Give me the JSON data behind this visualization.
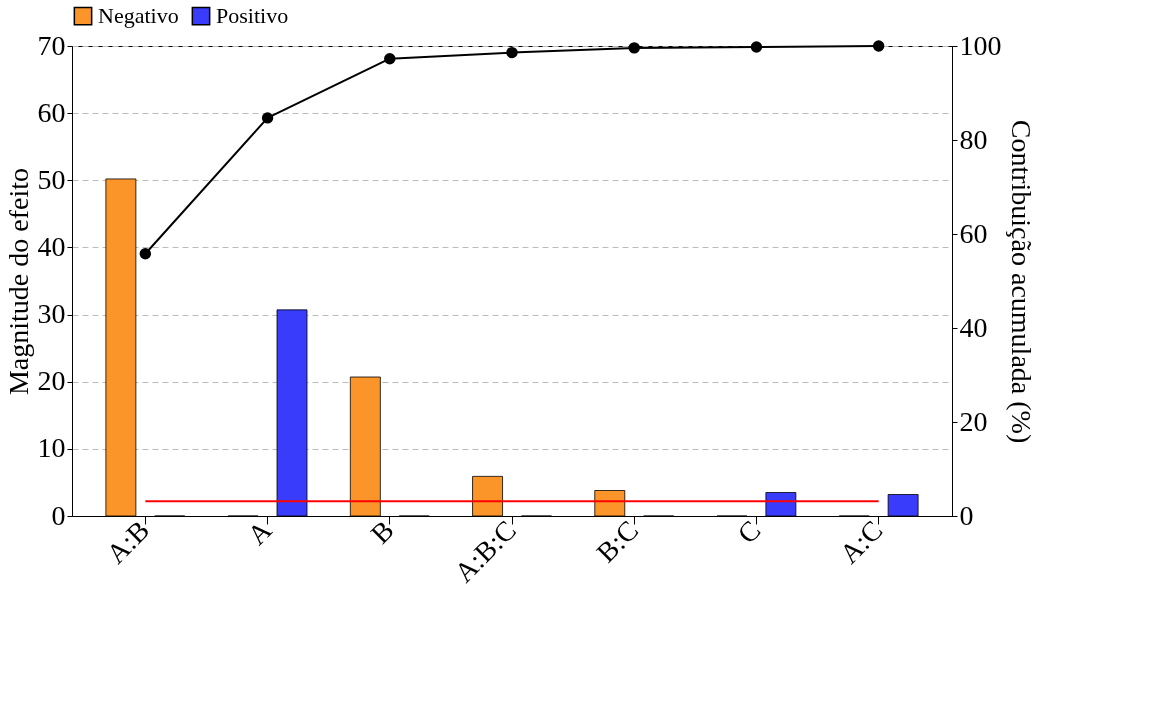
{
  "chart_data": {
    "type": "bar",
    "categories": [
      "A:B",
      "A",
      "B",
      "A:B:C",
      "B:C",
      "C",
      "A:C"
    ],
    "ylabel": "Magnitude do efeito",
    "y2label": "Contribuição acumulada (%)",
    "ylim": [
      0,
      70
    ],
    "yticks": [
      0,
      10,
      20,
      30,
      40,
      50,
      60,
      70
    ],
    "y2lim": [
      0,
      100
    ],
    "y2ticks": [
      0,
      20,
      40,
      60,
      80,
      100
    ],
    "series": [
      {
        "name": "Negativo",
        "color": "#fb9429",
        "values": [
          50.2,
          0,
          20.7,
          5.9,
          3.8,
          0,
          0
        ]
      },
      {
        "name": "Positivo",
        "color": "#3a3cfb",
        "values": [
          0,
          30.7,
          0,
          0,
          0,
          3.5,
          3.2
        ]
      },
      {
        "type": "line",
        "axis": "y2",
        "color": "#000000",
        "values": [
          55.8,
          84.7,
          97.3,
          98.6,
          99.6,
          99.8,
          100
        ]
      }
    ],
    "ref_lines": [
      {
        "axis": "y",
        "value": 2.2,
        "color": "#ff0000"
      }
    ],
    "grid": "y",
    "legend": "top",
    "marker": "circle",
    "line_style": "solid"
  }
}
